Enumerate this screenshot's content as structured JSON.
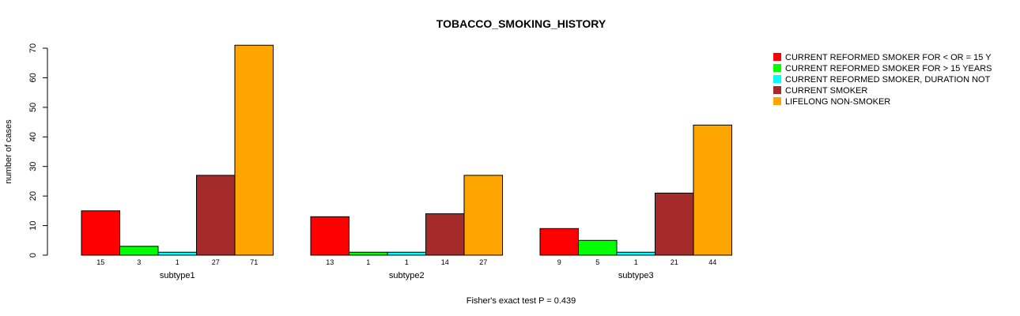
{
  "chart_data": {
    "type": "bar",
    "title": "TOBACCO_SMOKING_HISTORY",
    "ylabel": "number of cases",
    "ylim": [
      0,
      70
    ],
    "yticks": [
      0,
      10,
      20,
      30,
      40,
      50,
      60,
      70
    ],
    "categories": [
      "subtype1",
      "subtype2",
      "subtype3"
    ],
    "series": [
      {
        "name": "CURRENT REFORMED SMOKER FOR < OR = 15 Y",
        "color": "#ff0000",
        "values": [
          15,
          13,
          9
        ]
      },
      {
        "name": "CURRENT REFORMED SMOKER FOR > 15 YEARS",
        "color": "#00ff00",
        "values": [
          3,
          1,
          5
        ]
      },
      {
        "name": "CURRENT REFORMED SMOKER, DURATION NOT",
        "color": "#00ffff",
        "values": [
          1,
          1,
          1
        ]
      },
      {
        "name": "CURRENT SMOKER",
        "color": "#a52a2a",
        "values": [
          27,
          14,
          21
        ]
      },
      {
        "name": "LIFELONG NON-SMOKER",
        "color": "#ffa500",
        "values": [
          71,
          27,
          44
        ]
      }
    ],
    "legend_position": "top-right",
    "grid": false,
    "footnote": "Fisher's exact test P = 0.439"
  }
}
